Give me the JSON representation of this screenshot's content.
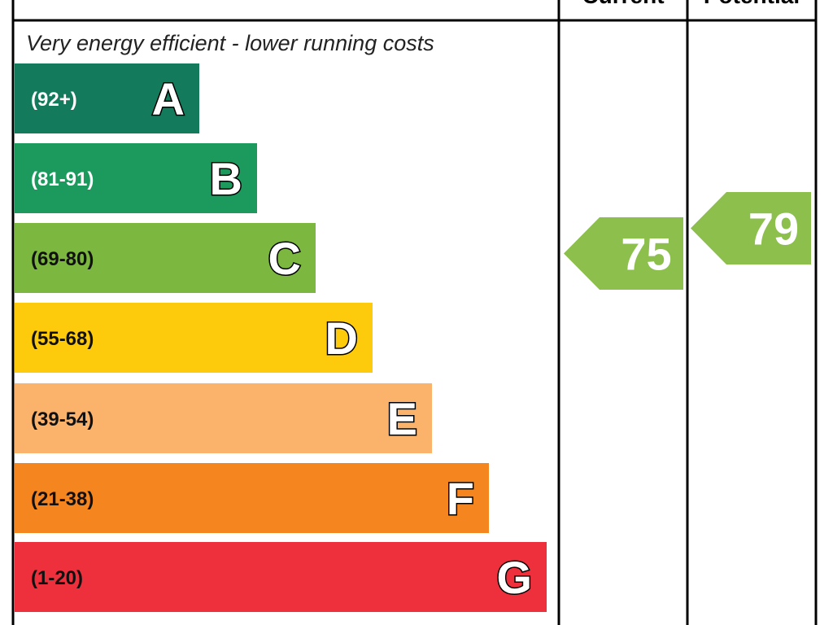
{
  "header": {
    "current": "Current",
    "potential": "Potential"
  },
  "subtitle": "Very energy efficient - lower running costs",
  "bands": [
    {
      "range": "(92+)",
      "letter": "A",
      "color": "#137a5c"
    },
    {
      "range": "(81-91)",
      "letter": "B",
      "color": "#1c9a5d"
    },
    {
      "range": "(69-80)",
      "letter": "C",
      "color": "#7cb740"
    },
    {
      "range": "(55-68)",
      "letter": "D",
      "color": "#fdcb0b"
    },
    {
      "range": "(39-54)",
      "letter": "E",
      "color": "#fbb26b"
    },
    {
      "range": "(21-38)",
      "letter": "F",
      "color": "#f5851f"
    },
    {
      "range": "(1-20)",
      "letter": "G",
      "color": "#ee2f3c"
    }
  ],
  "ratings": {
    "current": {
      "value": 75,
      "color": "#8cbf4c"
    },
    "potential": {
      "value": 79,
      "color": "#8cbf4c"
    }
  }
}
